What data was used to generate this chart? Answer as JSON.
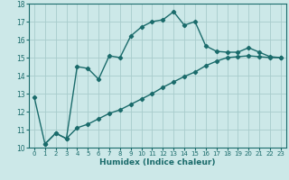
{
  "title": "",
  "xlabel": "Humidex (Indice chaleur)",
  "ylabel": "",
  "background_color": "#cce8e8",
  "grid_color": "#a8cccc",
  "line_color": "#1a6b6b",
  "xlim": [
    -0.5,
    23.5
  ],
  "ylim": [
    10,
    18
  ],
  "xticks": [
    0,
    1,
    2,
    3,
    4,
    5,
    6,
    7,
    8,
    9,
    10,
    11,
    12,
    13,
    14,
    15,
    16,
    17,
    18,
    19,
    20,
    21,
    22,
    23
  ],
  "yticks": [
    10,
    11,
    12,
    13,
    14,
    15,
    16,
    17,
    18
  ],
  "line1_x": [
    0,
    1,
    2,
    3,
    4,
    5,
    6,
    7,
    8,
    9,
    10,
    11,
    12,
    13,
    14,
    15,
    16,
    17,
    18,
    19,
    20,
    21,
    22,
    23
  ],
  "line1_y": [
    12.8,
    10.2,
    10.8,
    10.5,
    14.5,
    14.4,
    13.8,
    15.1,
    15.0,
    16.2,
    16.7,
    17.0,
    17.1,
    17.55,
    16.8,
    17.0,
    15.65,
    15.35,
    15.3,
    15.3,
    15.55,
    15.3,
    15.05,
    15.0
  ],
  "line2_x": [
    1,
    2,
    3,
    4,
    5,
    6,
    7,
    8,
    9,
    10,
    11,
    12,
    13,
    14,
    15,
    16,
    17,
    18,
    19,
    20,
    21,
    22,
    23
  ],
  "line2_y": [
    10.2,
    10.8,
    10.5,
    11.1,
    11.3,
    11.6,
    11.9,
    12.1,
    12.4,
    12.7,
    13.0,
    13.35,
    13.65,
    13.95,
    14.2,
    14.55,
    14.8,
    15.0,
    15.05,
    15.1,
    15.05,
    15.0,
    15.0
  ]
}
